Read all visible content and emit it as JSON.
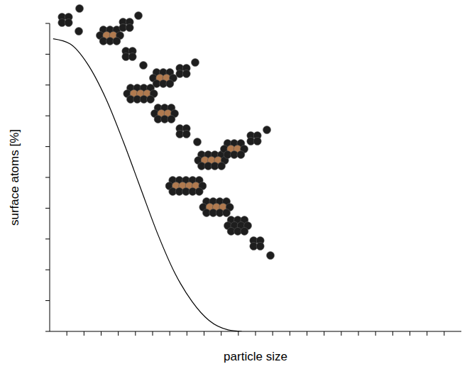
{
  "chart_data": {
    "type": "line",
    "xlabel": "particle size",
    "ylabel": "surface atoms [%]",
    "x": [
      0.2,
      1.2,
      2.2,
      3.3,
      4.3,
      5.3,
      6.3,
      7.3,
      8.3,
      9.3,
      10.4,
      11.2
    ],
    "values": [
      95,
      93.3,
      86.9,
      75.3,
      61.5,
      46.5,
      31.6,
      18.9,
      9.7,
      3.5,
      0.5,
      0
    ],
    "color": "#000000",
    "xlim": [
      0,
      24
    ],
    "ylim": [
      0,
      100
    ],
    "xticks": [
      1,
      2,
      3,
      4,
      5,
      6,
      7,
      8,
      9,
      10,
      11,
      12,
      13,
      14,
      15,
      16,
      17,
      18,
      19,
      20,
      21,
      22,
      23
    ],
    "yticks": [
      0,
      10,
      20,
      30,
      40,
      50,
      60,
      70,
      80,
      90,
      100
    ],
    "tick_labels": false
  }
}
